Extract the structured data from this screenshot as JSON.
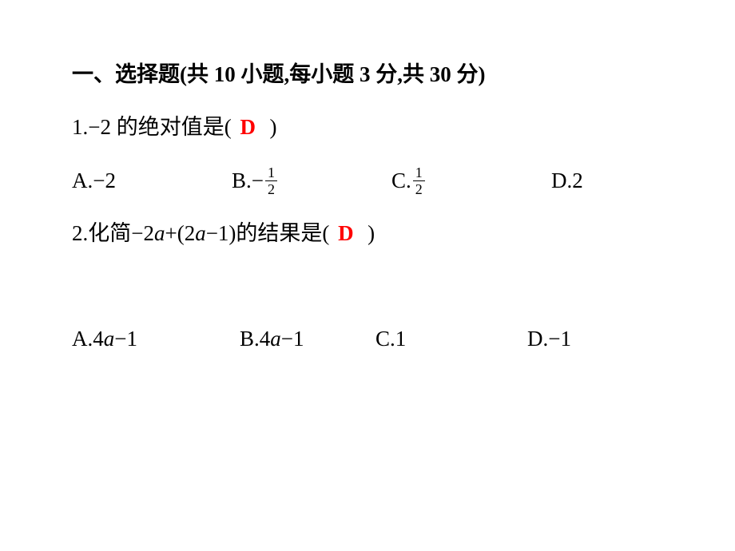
{
  "colors": {
    "text": "#000000",
    "answer": "#ff0000",
    "background": "#ffffff"
  },
  "section": {
    "title": "一、选择题(共 10 小题,每小题 3 分,共 30 分)"
  },
  "q1": {
    "prefix": "1.−2 的绝对值是(",
    "answer": "D",
    "suffix": ")",
    "options": {
      "A": {
        "label": "A.",
        "value": "−2"
      },
      "B": {
        "label": "B.",
        "sign": "−",
        "num": "1",
        "den": "2"
      },
      "C": {
        "label": "C.",
        "num": "1",
        "den": "2"
      },
      "D": {
        "label": "D.",
        "value": "2"
      }
    }
  },
  "q2": {
    "pre1": "2.化简−2",
    "var1": "a",
    "mid1": "+(2",
    "var2": "a",
    "mid2": "−1)的结果是(",
    "answer": "D",
    "suffix": ")",
    "options": {
      "A": {
        "label": "A.",
        "coef": "4",
        "var": "a",
        "tail": "−1"
      },
      "B": {
        "label": "B.",
        "coef": "4",
        "var": "a",
        "tail": "−1"
      },
      "C": {
        "label": "C.",
        "value": "1"
      },
      "D": {
        "label": "D.",
        "value": "−1"
      }
    }
  }
}
